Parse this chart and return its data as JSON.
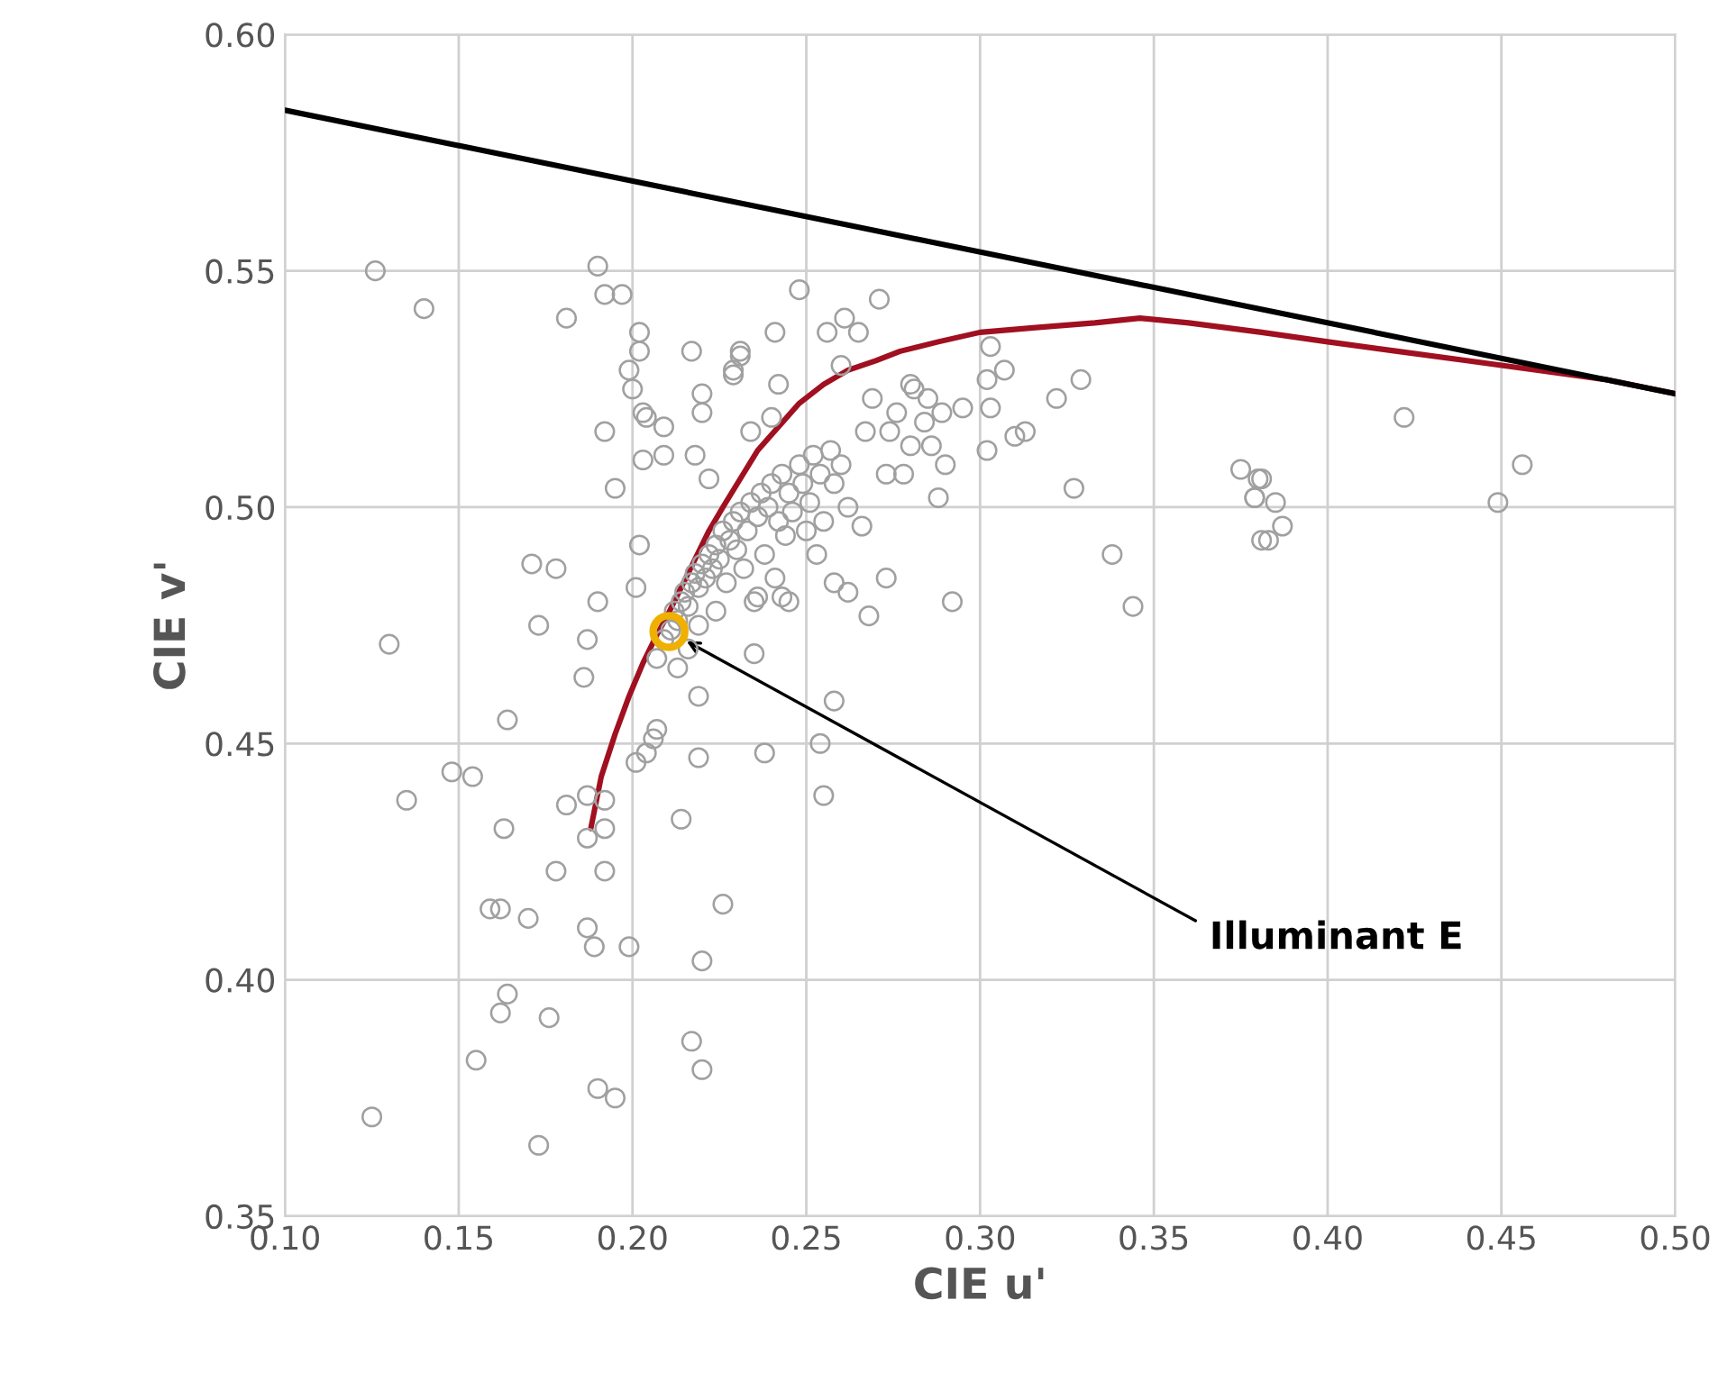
{
  "chart_data": {
    "type": "scatter",
    "xlabel": "CIE u'",
    "ylabel": "CIE v'",
    "grid": true,
    "legend": false,
    "xlim": [
      0.1,
      0.5
    ],
    "ylim": [
      0.35,
      0.6
    ],
    "xticks": [
      {
        "value": 0.1,
        "label": "0.10"
      },
      {
        "value": 0.15,
        "label": "0.15"
      },
      {
        "value": 0.2,
        "label": "0.20"
      },
      {
        "value": 0.25,
        "label": "0.25"
      },
      {
        "value": 0.3,
        "label": "0.30"
      },
      {
        "value": 0.35,
        "label": "0.35"
      },
      {
        "value": 0.4,
        "label": "0.40"
      },
      {
        "value": 0.45,
        "label": "0.45"
      },
      {
        "value": 0.5,
        "label": "0.50"
      }
    ],
    "yticks": [
      {
        "value": 0.35,
        "label": "0.35"
      },
      {
        "value": 0.4,
        "label": "0.40"
      },
      {
        "value": 0.45,
        "label": "0.45"
      },
      {
        "value": 0.5,
        "label": "0.50"
      },
      {
        "value": 0.55,
        "label": "0.55"
      },
      {
        "value": 0.6,
        "label": "0.60"
      }
    ],
    "annotations": [
      "Illuminant E"
    ],
    "series": [
      {
        "type": "scatter",
        "marker": "circle",
        "color": "#a0a0a0",
        "x": [
          0.126,
          0.14,
          0.19,
          0.192,
          0.197,
          0.181,
          0.202,
          0.202,
          0.199,
          0.2,
          0.203,
          0.204,
          0.209,
          0.192,
          0.217,
          0.229,
          0.231,
          0.22,
          0.22,
          0.209,
          0.203,
          0.218,
          0.195,
          0.222,
          0.171,
          0.178,
          0.202,
          0.201,
          0.19,
          0.173,
          0.187,
          0.13,
          0.186,
          0.164,
          0.219,
          0.207,
          0.148,
          0.154,
          0.135,
          0.163,
          0.181,
          0.187,
          0.192,
          0.187,
          0.192,
          0.178,
          0.192,
          0.214,
          0.226,
          0.159,
          0.162,
          0.17,
          0.187,
          0.189,
          0.199,
          0.22,
          0.164,
          0.162,
          0.176,
          0.217,
          0.22,
          0.155,
          0.19,
          0.195,
          0.125,
          0.173,
          0.219,
          0.238,
          0.206,
          0.204,
          0.201,
          0.254,
          0.255,
          0.248,
          0.271,
          0.241,
          0.256,
          0.261,
          0.265,
          0.231,
          0.229,
          0.26,
          0.242,
          0.303,
          0.307,
          0.302,
          0.329,
          0.322,
          0.28,
          0.281,
          0.285,
          0.289,
          0.295,
          0.303,
          0.269,
          0.276,
          0.24,
          0.234,
          0.267,
          0.274,
          0.284,
          0.28,
          0.286,
          0.31,
          0.313,
          0.302,
          0.29,
          0.273,
          0.278,
          0.288,
          0.327,
          0.338,
          0.344,
          0.258,
          0.262,
          0.273,
          0.292,
          0.268,
          0.235,
          0.258,
          0.236,
          0.243,
          0.245,
          0.266,
          0.375,
          0.38,
          0.379,
          0.381,
          0.381,
          0.379,
          0.385,
          0.387,
          0.383,
          0.422,
          0.456,
          0.449,
          0.207,
          0.209,
          0.211,
          0.212,
          0.213,
          0.214,
          0.215,
          0.216,
          0.217,
          0.218,
          0.219,
          0.22,
          0.221,
          0.222,
          0.223,
          0.224,
          0.225,
          0.226,
          0.228,
          0.229,
          0.23,
          0.231,
          0.233,
          0.234,
          0.236,
          0.237,
          0.239,
          0.24,
          0.242,
          0.243,
          0.245,
          0.246,
          0.248,
          0.249,
          0.251,
          0.252,
          0.254,
          0.255,
          0.257,
          0.258,
          0.26,
          0.262,
          0.227,
          0.232,
          0.238,
          0.244,
          0.25,
          0.235,
          0.241,
          0.253,
          0.213,
          0.216,
          0.219,
          0.224
        ],
        "values": [
          0.55,
          0.542,
          0.551,
          0.545,
          0.545,
          0.54,
          0.537,
          0.533,
          0.529,
          0.525,
          0.52,
          0.519,
          0.517,
          0.516,
          0.533,
          0.529,
          0.533,
          0.524,
          0.52,
          0.511,
          0.51,
          0.511,
          0.504,
          0.506,
          0.488,
          0.487,
          0.492,
          0.483,
          0.48,
          0.475,
          0.472,
          0.471,
          0.464,
          0.455,
          0.46,
          0.453,
          0.444,
          0.443,
          0.438,
          0.432,
          0.437,
          0.439,
          0.438,
          0.43,
          0.432,
          0.423,
          0.423,
          0.434,
          0.416,
          0.415,
          0.415,
          0.413,
          0.411,
          0.407,
          0.407,
          0.404,
          0.397,
          0.393,
          0.392,
          0.387,
          0.381,
          0.383,
          0.377,
          0.375,
          0.371,
          0.365,
          0.447,
          0.448,
          0.451,
          0.448,
          0.446,
          0.45,
          0.439,
          0.546,
          0.544,
          0.537,
          0.537,
          0.54,
          0.537,
          0.532,
          0.528,
          0.53,
          0.526,
          0.534,
          0.529,
          0.527,
          0.527,
          0.523,
          0.526,
          0.525,
          0.523,
          0.52,
          0.521,
          0.521,
          0.523,
          0.52,
          0.519,
          0.516,
          0.516,
          0.516,
          0.518,
          0.513,
          0.513,
          0.515,
          0.516,
          0.512,
          0.509,
          0.507,
          0.507,
          0.502,
          0.504,
          0.49,
          0.479,
          0.484,
          0.482,
          0.485,
          0.48,
          0.477,
          0.469,
          0.459,
          0.481,
          0.481,
          0.48,
          0.496,
          0.508,
          0.506,
          0.502,
          0.493,
          0.506,
          0.502,
          0.501,
          0.496,
          0.493,
          0.519,
          0.509,
          0.501,
          0.468,
          0.472,
          0.474,
          0.478,
          0.476,
          0.48,
          0.482,
          0.479,
          0.484,
          0.486,
          0.483,
          0.488,
          0.485,
          0.49,
          0.487,
          0.492,
          0.489,
          0.495,
          0.493,
          0.497,
          0.491,
          0.499,
          0.495,
          0.501,
          0.498,
          0.503,
          0.5,
          0.505,
          0.497,
          0.507,
          0.503,
          0.499,
          0.509,
          0.505,
          0.501,
          0.511,
          0.507,
          0.497,
          0.512,
          0.505,
          0.509,
          0.5,
          0.484,
          0.487,
          0.49,
          0.494,
          0.495,
          0.48,
          0.485,
          0.49,
          0.466,
          0.47,
          0.475,
          0.478
        ]
      },
      {
        "type": "line",
        "marker": "none",
        "line_style": "solid",
        "color": "#a01020",
        "x": [
          0.188,
          0.191,
          0.195,
          0.199,
          0.203,
          0.207,
          0.21,
          0.214,
          0.218,
          0.222,
          0.226,
          0.231,
          0.236,
          0.242,
          0.248,
          0.255,
          0.262,
          0.27,
          0.277,
          0.288,
          0.3,
          0.316,
          0.333,
          0.346,
          0.36,
          0.381,
          0.4,
          0.42,
          0.44,
          0.46,
          0.48,
          0.5
        ],
        "values": [
          0.432,
          0.443,
          0.452,
          0.46,
          0.467,
          0.473,
          0.477,
          0.483,
          0.489,
          0.495,
          0.5,
          0.506,
          0.512,
          0.517,
          0.522,
          0.526,
          0.529,
          0.531,
          0.533,
          0.535,
          0.537,
          0.538,
          0.539,
          0.54,
          0.539,
          0.537,
          0.535,
          0.533,
          0.531,
          0.529,
          0.527,
          0.524
        ]
      },
      {
        "type": "line",
        "marker": "none",
        "line_style": "solid",
        "color": "#000000",
        "x": [
          0.1,
          0.5
        ],
        "values": [
          0.584,
          0.524
        ]
      },
      {
        "type": "scatter",
        "marker": "circle",
        "color": "#f0b000",
        "x": [
          0.2105
        ],
        "values": [
          0.4737
        ]
      }
    ]
  }
}
